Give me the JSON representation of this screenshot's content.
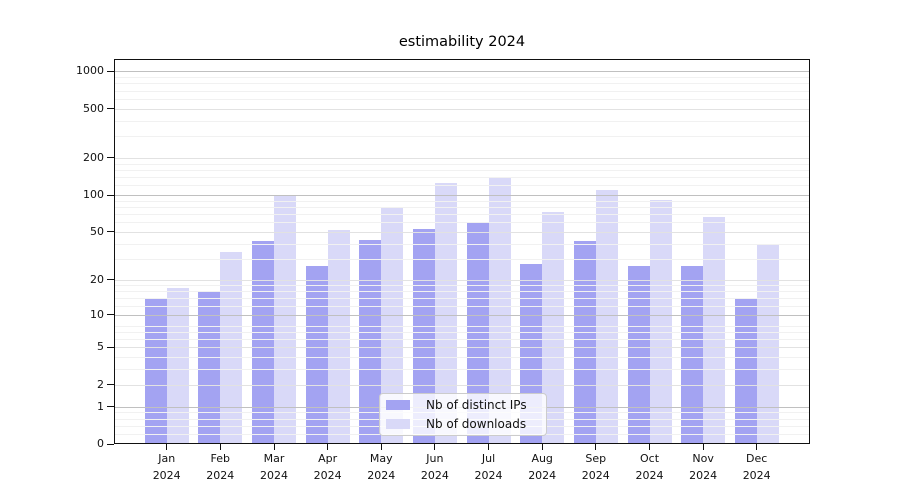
{
  "title": "estimability 2024",
  "legend": {
    "items": [
      {
        "label": "Nb of distinct IPs",
        "color": "#a3a3f2"
      },
      {
        "label": "Nb of downloads",
        "color": "#d9d9f8"
      }
    ]
  },
  "axes": {
    "y_tick_labels": [
      "0",
      "1",
      "2",
      "5",
      "10",
      "20",
      "50",
      "100",
      "200",
      "500",
      "1000"
    ],
    "x_year_line": "2024"
  },
  "chart_data": {
    "type": "bar",
    "title": "estimability 2024",
    "categories": [
      "Jan",
      "Feb",
      "Mar",
      "Apr",
      "May",
      "Jun",
      "Jul",
      "Aug",
      "Sep",
      "Oct",
      "Nov",
      "Dec"
    ],
    "x_sublabel": "2024",
    "series": [
      {
        "name": "Nb of distinct IPs",
        "color": "#a3a3f2",
        "values": [
          14,
          16,
          42,
          26,
          43,
          53,
          59,
          27,
          42,
          26,
          26,
          14
        ]
      },
      {
        "name": "Nb of downloads",
        "color": "#d9d9f8",
        "values": [
          17,
          34,
          100,
          52,
          79,
          125,
          138,
          73,
          110,
          92,
          66,
          40
        ]
      }
    ],
    "yscale": "log1p",
    "y_ticks": [
      0,
      1,
      2,
      5,
      10,
      20,
      50,
      100,
      200,
      500,
      1000
    ],
    "ylim": [
      0,
      1200
    ],
    "grid": true,
    "grid_over_bars": true,
    "legend_position": "lower center",
    "colors": {
      "grid_major": "#c0c0c0",
      "grid_sub": "#e2e2e2",
      "grid_minor": "#f1f1f1"
    }
  }
}
